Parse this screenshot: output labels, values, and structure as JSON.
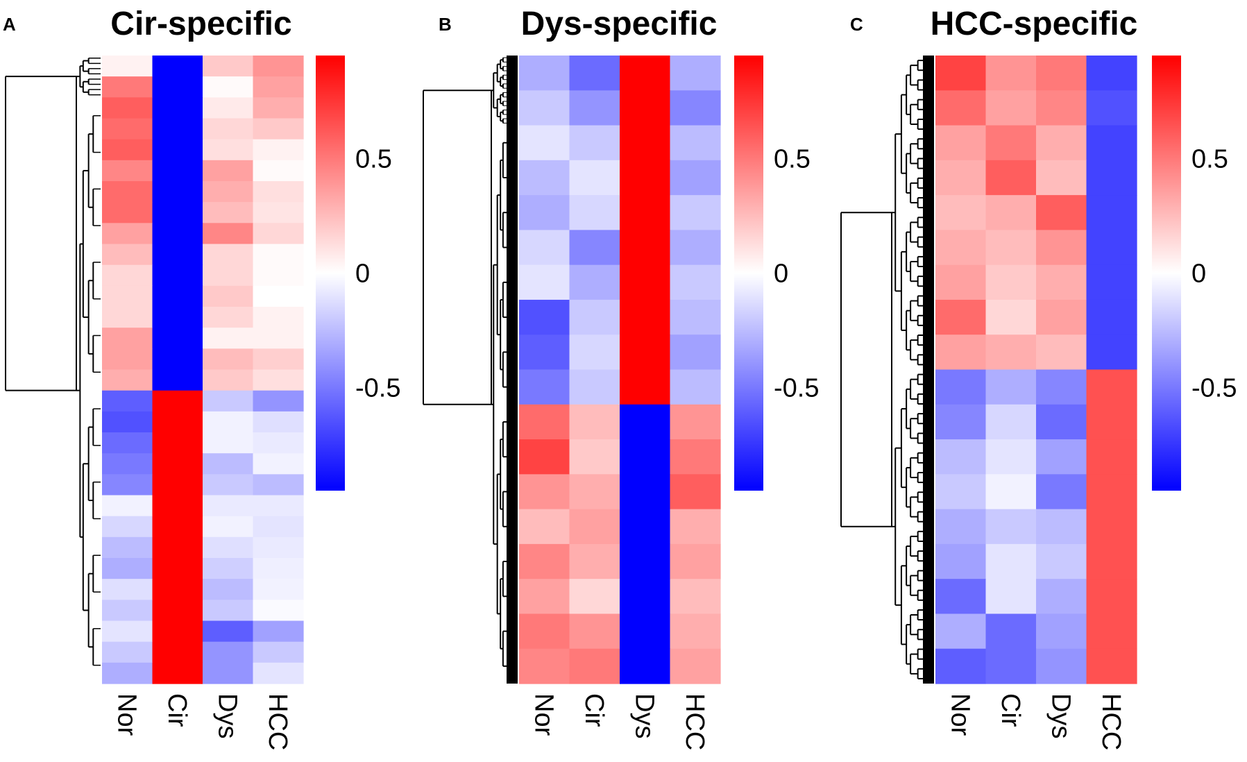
{
  "chart_data": [
    {
      "panel_label": "A",
      "title": "Cir-specific",
      "type": "heatmap",
      "columns": [
        "Nor",
        "Cir",
        "Dys",
        "HCC"
      ],
      "colorbar": {
        "ticks": [
          0.5,
          0,
          -0.5
        ],
        "tick_labels": [
          "0.5",
          "0",
          "-0.5"
        ],
        "range": [
          -0.95,
          0.95
        ]
      },
      "colors": {
        "low": "#0000ff",
        "mid": "#ffffff",
        "high": "#ff0000"
      },
      "rows": [
        [
          0.05,
          -0.95,
          0.2,
          0.4
        ],
        [
          0.5,
          -0.95,
          0.02,
          0.35
        ],
        [
          0.6,
          -0.95,
          0.08,
          0.3
        ],
        [
          0.55,
          -0.95,
          0.15,
          0.2
        ],
        [
          0.6,
          -0.95,
          0.12,
          0.05
        ],
        [
          0.45,
          -0.95,
          0.35,
          0.02
        ],
        [
          0.55,
          -0.95,
          0.3,
          0.12
        ],
        [
          0.55,
          -0.95,
          0.25,
          0.1
        ],
        [
          0.35,
          -0.95,
          0.45,
          0.15
        ],
        [
          0.25,
          -0.95,
          0.15,
          0.02
        ],
        [
          0.15,
          -0.95,
          0.15,
          0.02
        ],
        [
          0.15,
          -0.95,
          0.2,
          0.0
        ],
        [
          0.15,
          -0.95,
          0.15,
          0.05
        ],
        [
          0.35,
          -0.95,
          0.05,
          0.05
        ],
        [
          0.35,
          -0.95,
          0.25,
          0.18
        ],
        [
          0.3,
          -0.95,
          0.2,
          0.12
        ],
        [
          -0.6,
          0.95,
          -0.2,
          -0.4
        ],
        [
          -0.65,
          0.95,
          -0.05,
          -0.12
        ],
        [
          -0.55,
          0.95,
          -0.05,
          -0.08
        ],
        [
          -0.5,
          0.95,
          -0.25,
          -0.05
        ],
        [
          -0.45,
          0.95,
          -0.2,
          -0.25
        ],
        [
          -0.05,
          0.95,
          -0.08,
          -0.08
        ],
        [
          -0.15,
          0.95,
          -0.05,
          -0.1
        ],
        [
          -0.25,
          0.95,
          -0.12,
          -0.08
        ],
        [
          -0.3,
          0.95,
          -0.18,
          -0.06
        ],
        [
          -0.12,
          0.95,
          -0.25,
          -0.05
        ],
        [
          -0.2,
          0.95,
          -0.2,
          -0.02
        ],
        [
          -0.1,
          0.95,
          -0.6,
          -0.35
        ],
        [
          -0.2,
          0.95,
          -0.4,
          -0.2
        ],
        [
          -0.3,
          0.95,
          -0.4,
          -0.1
        ]
      ]
    },
    {
      "panel_label": "B",
      "title": "Dys-specific",
      "type": "heatmap",
      "columns": [
        "Nor",
        "Cir",
        "Dys",
        "HCC"
      ],
      "colorbar": {
        "ticks": [
          0.5,
          0,
          -0.5
        ],
        "tick_labels": [
          "0.5",
          "0",
          "-0.5"
        ],
        "range": [
          -0.95,
          0.95
        ]
      },
      "colors": {
        "low": "#0000ff",
        "mid": "#ffffff",
        "high": "#ff0000"
      },
      "rows": [
        [
          -0.3,
          -0.55,
          0.95,
          -0.3
        ],
        [
          -0.2,
          -0.4,
          0.95,
          -0.45
        ],
        [
          -0.1,
          -0.2,
          0.95,
          -0.25
        ],
        [
          -0.25,
          -0.1,
          0.95,
          -0.35
        ],
        [
          -0.3,
          -0.15,
          0.95,
          -0.2
        ],
        [
          -0.15,
          -0.45,
          0.95,
          -0.3
        ],
        [
          -0.1,
          -0.3,
          0.95,
          -0.2
        ],
        [
          -0.65,
          -0.2,
          0.95,
          -0.25
        ],
        [
          -0.6,
          -0.15,
          0.95,
          -0.35
        ],
        [
          -0.5,
          -0.2,
          0.95,
          -0.25
        ],
        [
          0.55,
          0.25,
          -0.95,
          0.4
        ],
        [
          0.7,
          0.2,
          -0.95,
          0.5
        ],
        [
          0.4,
          0.3,
          -0.95,
          0.6
        ],
        [
          0.25,
          0.35,
          -0.95,
          0.3
        ],
        [
          0.45,
          0.3,
          -0.95,
          0.35
        ],
        [
          0.35,
          0.15,
          -0.95,
          0.25
        ],
        [
          0.5,
          0.4,
          -0.95,
          0.3
        ],
        [
          0.45,
          0.5,
          -0.95,
          0.35
        ]
      ]
    },
    {
      "panel_label": "C",
      "title": "HCC-specific",
      "type": "heatmap",
      "columns": [
        "Nor",
        "Cir",
        "Dys",
        "HCC"
      ],
      "colorbar": {
        "ticks": [
          0.5,
          0,
          -0.5
        ],
        "tick_labels": [
          "0.5",
          "0",
          "-0.5"
        ],
        "range": [
          -0.95,
          0.95
        ]
      },
      "colors": {
        "low": "#0000ff",
        "mid": "#ffffff",
        "high": "#ff0000"
      },
      "rows": [
        [
          0.7,
          0.4,
          0.5,
          -0.7
        ],
        [
          0.55,
          0.35,
          0.45,
          -0.65
        ],
        [
          0.35,
          0.5,
          0.3,
          -0.7
        ],
        [
          0.3,
          0.6,
          0.25,
          -0.7
        ],
        [
          0.25,
          0.3,
          0.6,
          -0.7
        ],
        [
          0.3,
          0.25,
          0.4,
          -0.7
        ],
        [
          0.35,
          0.2,
          0.3,
          -0.7
        ],
        [
          0.55,
          0.15,
          0.35,
          -0.7
        ],
        [
          0.35,
          0.3,
          0.25,
          -0.7
        ],
        [
          -0.5,
          -0.3,
          -0.45,
          0.65
        ],
        [
          -0.45,
          -0.15,
          -0.55,
          0.65
        ],
        [
          -0.25,
          -0.1,
          -0.35,
          0.65
        ],
        [
          -0.2,
          -0.05,
          -0.5,
          0.65
        ],
        [
          -0.3,
          -0.2,
          -0.25,
          0.65
        ],
        [
          -0.35,
          -0.1,
          -0.2,
          0.65
        ],
        [
          -0.55,
          -0.1,
          -0.3,
          0.65
        ],
        [
          -0.3,
          -0.55,
          -0.35,
          0.65
        ],
        [
          -0.6,
          -0.55,
          -0.4,
          0.65
        ]
      ]
    }
  ]
}
